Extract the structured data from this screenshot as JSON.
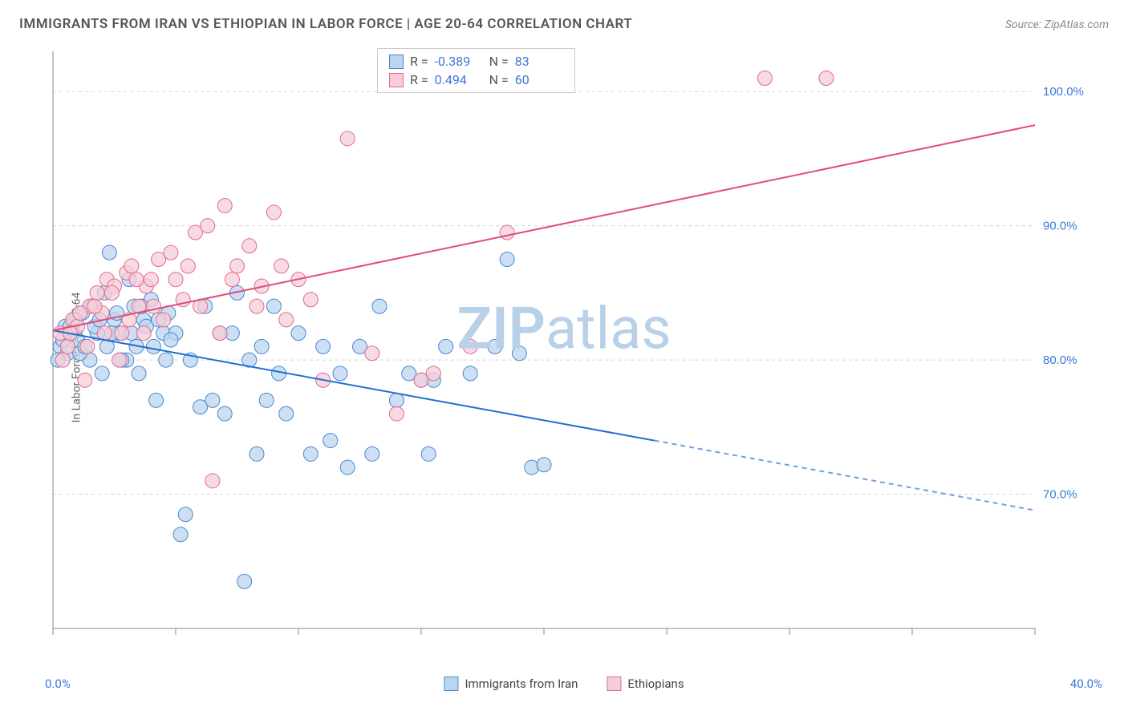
{
  "title": "IMMIGRANTS FROM IRAN VS ETHIOPIAN IN LABOR FORCE | AGE 20-64 CORRELATION CHART",
  "source": "Source: ZipAtlas.com",
  "ylabel": "In Labor Force | Age 20-64",
  "watermark_left": "ZIP",
  "watermark_right": "atlas",
  "watermark_color": "#b8d0e8",
  "chart": {
    "type": "scatter",
    "background_color": "#ffffff",
    "grid_color": "#d5d5d5",
    "axis_line_color": "#888888",
    "tick_color": "#888888",
    "xlim": [
      0,
      40
    ],
    "ylim": [
      60,
      103
    ],
    "x_tick_step": 5,
    "x_tick_labels": {
      "0": "0.0%",
      "40": "40.0%"
    },
    "x_label_color": "#3b78d8",
    "y_gridlines": [
      70,
      80,
      90,
      100
    ],
    "y_tick_labels": {
      "70": "70.0%",
      "80": "80.0%",
      "90": "90.0%",
      "100": "100.0%"
    },
    "y_label_color": "#3b78d8",
    "marker_radius": 9,
    "marker_stroke_width": 1,
    "series": [
      {
        "name": "Immigrants from Iran",
        "fill": "#bcd5ef",
        "stroke": "#4a86d0",
        "R": "-0.389",
        "N": "83",
        "trend": {
          "x1": 0,
          "y1": 82.2,
          "x2": 24.5,
          "y2": 74.0,
          "color": "#1f6fd4",
          "width": 2
        },
        "trend_ext": {
          "x1": 24.5,
          "y1": 74.0,
          "x2": 40,
          "y2": 68.8,
          "color": "#6fa0e0",
          "dash": "6,5"
        },
        "points": [
          [
            0.3,
            81
          ],
          [
            0.5,
            82.5
          ],
          [
            0.6,
            80.5
          ],
          [
            0.8,
            82
          ],
          [
            1,
            81.5
          ],
          [
            1.2,
            83.5
          ],
          [
            1.5,
            80
          ],
          [
            1.6,
            84
          ],
          [
            1.8,
            82
          ],
          [
            2,
            79
          ],
          [
            2.1,
            85
          ],
          [
            2.3,
            88
          ],
          [
            2.5,
            83
          ],
          [
            2.7,
            82
          ],
          [
            3,
            80
          ],
          [
            3.1,
            86
          ],
          [
            3.3,
            84
          ],
          [
            3.5,
            79
          ],
          [
            3.7,
            83
          ],
          [
            4,
            84.5
          ],
          [
            4.2,
            77
          ],
          [
            4.5,
            82
          ],
          [
            4.7,
            83.5
          ],
          [
            5,
            82
          ],
          [
            5.2,
            67
          ],
          [
            5.4,
            68.5
          ],
          [
            5.6,
            80
          ],
          [
            6,
            76.5
          ],
          [
            6.2,
            84
          ],
          [
            6.5,
            77
          ],
          [
            6.8,
            82
          ],
          [
            7,
            76
          ],
          [
            7.3,
            82
          ],
          [
            7.5,
            85
          ],
          [
            7.8,
            63.5
          ],
          [
            8,
            80
          ],
          [
            8.3,
            73
          ],
          [
            8.5,
            81
          ],
          [
            8.7,
            77
          ],
          [
            9,
            84
          ],
          [
            9.2,
            79
          ],
          [
            9.5,
            76
          ],
          [
            10,
            82
          ],
          [
            10.5,
            73
          ],
          [
            11,
            81
          ],
          [
            11.3,
            74
          ],
          [
            11.7,
            79
          ],
          [
            12,
            72
          ],
          [
            12.5,
            81
          ],
          [
            13,
            73
          ],
          [
            13.3,
            84
          ],
          [
            14,
            77
          ],
          [
            14.5,
            79
          ],
          [
            15,
            78.5
          ],
          [
            15.3,
            73
          ],
          [
            15.5,
            78.5
          ],
          [
            16,
            81
          ],
          [
            17,
            79
          ],
          [
            18,
            81
          ],
          [
            18.5,
            87.5
          ],
          [
            19,
            80.5
          ],
          [
            19.5,
            72
          ],
          [
            20,
            72.2
          ],
          [
            0.2,
            80
          ],
          [
            0.4,
            81.5
          ],
          [
            0.7,
            82.5
          ],
          [
            0.9,
            83
          ],
          [
            1.1,
            80.5
          ],
          [
            1.3,
            81
          ],
          [
            1.7,
            82.5
          ],
          [
            1.9,
            83
          ],
          [
            2.2,
            81
          ],
          [
            2.4,
            82
          ],
          [
            2.6,
            83.5
          ],
          [
            2.8,
            80
          ],
          [
            3.2,
            82
          ],
          [
            3.4,
            81
          ],
          [
            3.6,
            84
          ],
          [
            3.8,
            82.5
          ],
          [
            4.1,
            81
          ],
          [
            4.3,
            83
          ],
          [
            4.6,
            80
          ],
          [
            4.8,
            81.5
          ]
        ]
      },
      {
        "name": "Ethiopians",
        "fill": "#f6cdd8",
        "stroke": "#e06a8d",
        "R": "0.494",
        "N": "60",
        "trend": {
          "x1": 0,
          "y1": 82.2,
          "x2": 40,
          "y2": 97.5,
          "color": "#e34b77",
          "width": 2
        },
        "points": [
          [
            0.3,
            82
          ],
          [
            0.6,
            81
          ],
          [
            0.8,
            83
          ],
          [
            1,
            82.5
          ],
          [
            1.3,
            78.5
          ],
          [
            1.5,
            84
          ],
          [
            1.8,
            85
          ],
          [
            2,
            83.5
          ],
          [
            2.2,
            86
          ],
          [
            2.5,
            85.5
          ],
          [
            2.8,
            82
          ],
          [
            3,
            86.5
          ],
          [
            3.2,
            87
          ],
          [
            3.5,
            84
          ],
          [
            3.8,
            85.5
          ],
          [
            4,
            86
          ],
          [
            4.3,
            87.5
          ],
          [
            4.5,
            83
          ],
          [
            4.8,
            88
          ],
          [
            5,
            86
          ],
          [
            5.3,
            84.5
          ],
          [
            5.5,
            87
          ],
          [
            5.8,
            89.5
          ],
          [
            6,
            84
          ],
          [
            6.3,
            90
          ],
          [
            6.5,
            71
          ],
          [
            6.8,
            82
          ],
          [
            7,
            91.5
          ],
          [
            7.3,
            86
          ],
          [
            7.5,
            87
          ],
          [
            8,
            88.5
          ],
          [
            8.3,
            84
          ],
          [
            8.5,
            85.5
          ],
          [
            9,
            91
          ],
          [
            9.3,
            87
          ],
          [
            9.5,
            83
          ],
          [
            10,
            86
          ],
          [
            10.5,
            84.5
          ],
          [
            11,
            78.5
          ],
          [
            12,
            96.5
          ],
          [
            13,
            80.5
          ],
          [
            14,
            76
          ],
          [
            15,
            78.5
          ],
          [
            15.5,
            79
          ],
          [
            17,
            81
          ],
          [
            18.5,
            89.5
          ],
          [
            29,
            101
          ],
          [
            31.5,
            101
          ],
          [
            0.4,
            80
          ],
          [
            0.7,
            82
          ],
          [
            1.1,
            83.5
          ],
          [
            1.4,
            81
          ],
          [
            1.7,
            84
          ],
          [
            2.1,
            82
          ],
          [
            2.4,
            85
          ],
          [
            2.7,
            80
          ],
          [
            3.1,
            83
          ],
          [
            3.4,
            86
          ],
          [
            3.7,
            82
          ],
          [
            4.1,
            84
          ]
        ]
      }
    ]
  },
  "stat_value_color": "#3b78d8",
  "legend": {
    "items": [
      {
        "label": "Immigrants from Iran",
        "fill": "#bcd5ef",
        "stroke": "#4a86d0"
      },
      {
        "label": "Ethiopians",
        "fill": "#f6cdd8",
        "stroke": "#e06a8d"
      }
    ]
  }
}
